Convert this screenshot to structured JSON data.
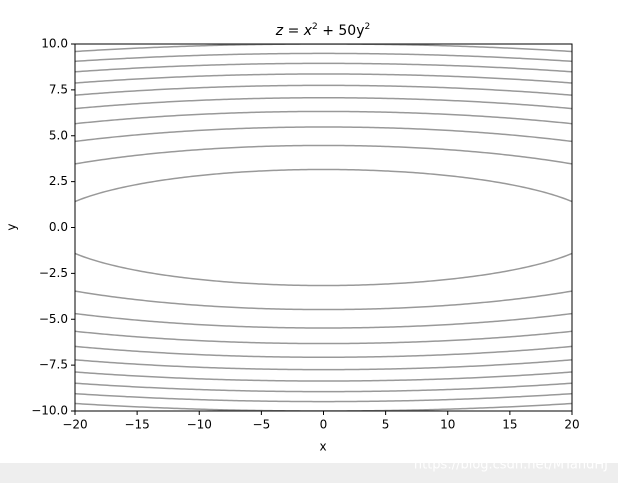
{
  "chart_data": {
    "type": "contour",
    "title": [
      {
        "text": "z = x"
      },
      {
        "text": "2",
        "sup": true
      },
      {
        "text": " + 50y"
      },
      {
        "text": "2",
        "sup": true
      }
    ],
    "x_label": "x",
    "y_label": "y",
    "function": {
      "x2": 1,
      "y2": 50
    },
    "levels": [
      500,
      1000,
      1500,
      2000,
      2500,
      3000,
      3500,
      4000,
      4500,
      5000
    ],
    "color": "#999999",
    "xlim": [
      -20,
      20
    ],
    "xticks": [
      {
        "value": -20,
        "label": "−20"
      },
      {
        "value": -15,
        "label": "−15"
      },
      {
        "value": -10,
        "label": "−10"
      },
      {
        "value": -5,
        "label": "−5"
      },
      0,
      5,
      10,
      15,
      20
    ],
    "ylim": [
      -10,
      10
    ],
    "yticks": [
      {
        "value": -10,
        "label": "−10.0"
      },
      {
        "value": -7.5,
        "label": "−7.5"
      },
      {
        "value": -5,
        "label": "−5.0"
      },
      {
        "value": -2.5,
        "label": "−2.5"
      },
      {
        "value": 0,
        "label": "0.0"
      },
      {
        "value": 2.5,
        "label": "2.5"
      },
      {
        "value": 5,
        "label": "5.0"
      },
      {
        "value": 7.5,
        "label": "7.5"
      },
      {
        "value": 10,
        "label": "10.0"
      }
    ]
  },
  "watermark": "https://blog.csdn.net/MTandHJ"
}
